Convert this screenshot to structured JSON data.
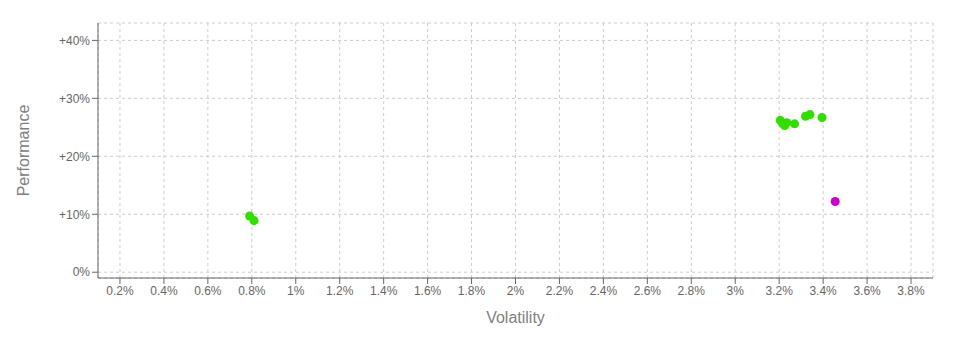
{
  "chart_data": {
    "type": "scatter",
    "xlabel": "Volatility",
    "ylabel": "Performance",
    "xlim": [
      0.001,
      0.039
    ],
    "ylim": [
      -0.01,
      0.43
    ],
    "xticks": [
      {
        "value": 0.002,
        "label": "0.2%"
      },
      {
        "value": 0.004,
        "label": "0.4%"
      },
      {
        "value": 0.006,
        "label": "0.6%"
      },
      {
        "value": 0.008,
        "label": "0.8%"
      },
      {
        "value": 0.01,
        "label": "1%"
      },
      {
        "value": 0.012,
        "label": "1.2%"
      },
      {
        "value": 0.014,
        "label": "1.4%"
      },
      {
        "value": 0.016,
        "label": "1.6%"
      },
      {
        "value": 0.018,
        "label": "1.8%"
      },
      {
        "value": 0.02,
        "label": "2%"
      },
      {
        "value": 0.022,
        "label": "2.2%"
      },
      {
        "value": 0.024,
        "label": "2.4%"
      },
      {
        "value": 0.026,
        "label": "2.6%"
      },
      {
        "value": 0.028,
        "label": "2.8%"
      },
      {
        "value": 0.03,
        "label": "3%"
      },
      {
        "value": 0.032,
        "label": "3.2%"
      },
      {
        "value": 0.034,
        "label": "3.4%"
      },
      {
        "value": 0.036,
        "label": "3.6%"
      },
      {
        "value": 0.038,
        "label": "3.8%"
      }
    ],
    "yticks": [
      {
        "value": 0.0,
        "label": "0%"
      },
      {
        "value": 0.1,
        "label": "+10%"
      },
      {
        "value": 0.2,
        "label": "+20%"
      },
      {
        "value": 0.3,
        "label": "+30%"
      },
      {
        "value": 0.4,
        "label": "+40%"
      }
    ],
    "grid": true,
    "series": [
      {
        "color": "#33dd00",
        "x": [
          0.0079,
          0.0081,
          0.03205,
          0.03215,
          0.03225,
          0.03235,
          0.0327,
          0.0332,
          0.0334,
          0.03395
        ],
        "values": [
          0.097,
          0.089,
          0.262,
          0.257,
          0.253,
          0.258,
          0.256,
          0.269,
          0.272,
          0.267
        ]
      },
      {
        "color": "#cc00cc",
        "x": [
          0.03455
        ],
        "values": [
          0.122
        ]
      }
    ]
  }
}
